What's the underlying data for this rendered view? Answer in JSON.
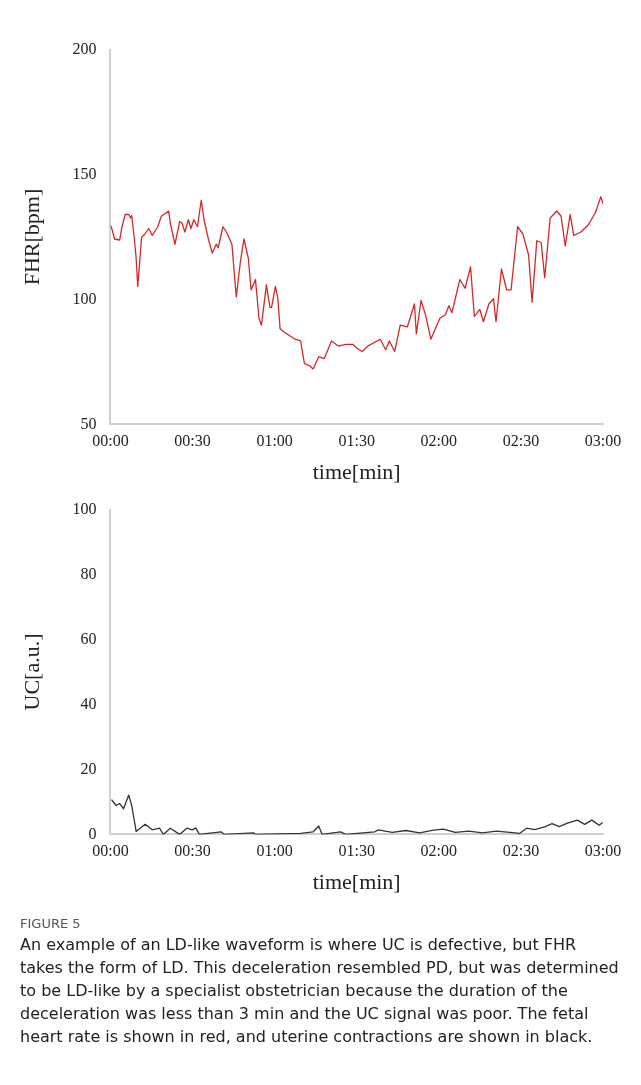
{
  "chart_data": [
    {
      "type": "line",
      "xlabel": "time[min]",
      "ylabel": "FHR[bpm]",
      "xlim": [
        0,
        180
      ],
      "ylim": [
        50,
        200
      ],
      "grid": false,
      "legend": false,
      "marker": "none",
      "line_style": "solid",
      "xticks": [
        {
          "value": 0,
          "label": "00:00"
        },
        {
          "value": 30,
          "label": "00:30"
        },
        {
          "value": 60,
          "label": "01:00"
        },
        {
          "value": 90,
          "label": "01:30"
        },
        {
          "value": 120,
          "label": "02:00"
        },
        {
          "value": 150,
          "label": "02:30"
        },
        {
          "value": 180,
          "label": "03:00"
        }
      ],
      "yticks": [
        50,
        100,
        150,
        200
      ],
      "series": [
        {
          "color": "#d62728",
          "x": [
            0,
            0.7,
            1.5,
            3.4,
            4.1,
            5.4,
            6.7,
            7.4,
            7.8,
            8.7,
            9.4,
            10,
            11.4,
            12.7,
            14,
            15.3,
            17.3,
            18.6,
            21.3,
            21.9,
            23.6,
            25.3,
            26.2,
            27.2,
            28.5,
            29.4,
            30.5,
            31.8,
            33.2,
            34.2,
            35.8,
            37.2,
            38.7,
            39.4,
            41.1,
            42.4,
            44.4,
            46,
            47.5,
            48.8,
            50.4,
            51.4,
            53,
            54.3,
            55.2,
            57,
            58.3,
            58.9,
            60.3,
            61.2,
            62,
            63.6,
            67.5,
            69.5,
            70.9,
            72.8,
            74.1,
            76.1,
            78.1,
            80.8,
            83.4,
            86,
            88.7,
            90,
            92,
            94,
            98.6,
            100.6,
            101.9,
            103.9,
            105.9,
            108.5,
            111.1,
            111.8,
            113.5,
            115.1,
            117.1,
            120.4,
            122.4,
            123.7,
            124.8,
            127.7,
            129.6,
            131.6,
            133,
            135,
            136.3,
            138.3,
            140,
            140.9,
            142.9,
            144.8,
            146.4,
            148.8,
            150.7,
            152.8,
            154.1,
            155.8,
            157.4,
            158.7,
            160.7,
            163.1,
            164.7,
            166.2,
            168,
            169.3,
            171.9,
            174.6,
            177.2,
            179.2,
            180
          ],
          "values": [
            129.8,
            127.7,
            124.2,
            123.8,
            128.4,
            134,
            134,
            132.6,
            133.6,
            124.9,
            116.5,
            105.2,
            124.9,
            126.3,
            128.4,
            125.6,
            129.1,
            133.3,
            135.4,
            130.5,
            122.1,
            131.2,
            130.5,
            127,
            131.9,
            128.4,
            131.9,
            129.1,
            139.7,
            131.9,
            124.2,
            118.6,
            122.1,
            120.7,
            129.1,
            127,
            122.1,
            101,
            115.1,
            124.2,
            116.5,
            103.8,
            108,
            92.5,
            89.7,
            105.9,
            96.8,
            96.8,
            105.2,
            100.3,
            88.3,
            86.9,
            84.1,
            83.4,
            74.3,
            73.5,
            72.2,
            77.1,
            76.3,
            83.4,
            81.3,
            82,
            82,
            80.6,
            79.2,
            81.3,
            84.1,
            79.9,
            83.4,
            79.2,
            89.7,
            89,
            98.2,
            86.2,
            99.6,
            94,
            84.1,
            92.5,
            93.9,
            97.5,
            94.7,
            108,
            104.5,
            113,
            93.2,
            96,
            91.1,
            98.2,
            100.3,
            91.1,
            112.2,
            103.8,
            103.8,
            129.1,
            126.3,
            117.9,
            98.9,
            123.5,
            122.8,
            108.7,
            132.6,
            135.4,
            133.3,
            121.4,
            134,
            125.6,
            127,
            129.8,
            134.7,
            141.1,
            138.3
          ]
        }
      ]
    },
    {
      "type": "line",
      "xlabel": "time[min]",
      "ylabel": "UC[a.u.]",
      "xlim": [
        0,
        180
      ],
      "ylim": [
        0,
        100
      ],
      "grid": false,
      "legend": false,
      "marker": "none",
      "line_style": "solid",
      "xticks": [
        {
          "value": 0,
          "label": "00:00"
        },
        {
          "value": 30,
          "label": "00:30"
        },
        {
          "value": 60,
          "label": "01:00"
        },
        {
          "value": 90,
          "label": "01:30"
        },
        {
          "value": 120,
          "label": "02:00"
        },
        {
          "value": 150,
          "label": "02:30"
        },
        {
          "value": 180,
          "label": "03:00"
        }
      ],
      "yticks": [
        0,
        20,
        40,
        60,
        80,
        100
      ],
      "series": [
        {
          "color": "#333333",
          "x": [
            0.4,
            2.1,
            3.4,
            4.8,
            6.7,
            7.8,
            9.4,
            12.7,
            15.3,
            18,
            19.3,
            21.9,
            25.3,
            27.9,
            29.9,
            31.2,
            32.5,
            40.4,
            41.7,
            52.3,
            53,
            69.5,
            74.1,
            76.1,
            77.4,
            84.1,
            86,
            96.6,
            97.9,
            103,
            108,
            113,
            118,
            121.7,
            126,
            131,
            136,
            141,
            146,
            149.5,
            152.1,
            155,
            158.7,
            161.4,
            164,
            167,
            170.6,
            173.3,
            175.9,
            178.6,
            179.9
          ],
          "values": [
            10.7,
            8.9,
            9.5,
            7.9,
            12.1,
            8.9,
            0.9,
            3.1,
            1.4,
            1.9,
            0,
            1.9,
            0,
            1.9,
            1.4,
            2,
            0,
            0.8,
            0,
            0.5,
            0,
            0.3,
            0.8,
            2.6,
            0,
            0.8,
            0,
            0.8,
            1.4,
            0.6,
            1.2,
            0.5,
            1.3,
            1.6,
            0.6,
            1,
            0.5,
            1,
            0.6,
            0.3,
            1.9,
            1.5,
            2.3,
            3.3,
            2.4,
            3.5,
            4.4,
            3.1,
            4.4,
            2.8,
            3.7
          ]
        }
      ],
      "annotations": [
        "FIGURE 5",
        "An example of an LD-like waveform is where UC is defective, but FHR takes the form of LD. This deceleration resembled PD, but was determined to be LD-like by a specialist obstetrician because the duration of the deceleration was less than 3 min and the UC signal was poor. The fetal heart rate is shown in red, and uterine contractions are shown in black."
      ]
    }
  ]
}
